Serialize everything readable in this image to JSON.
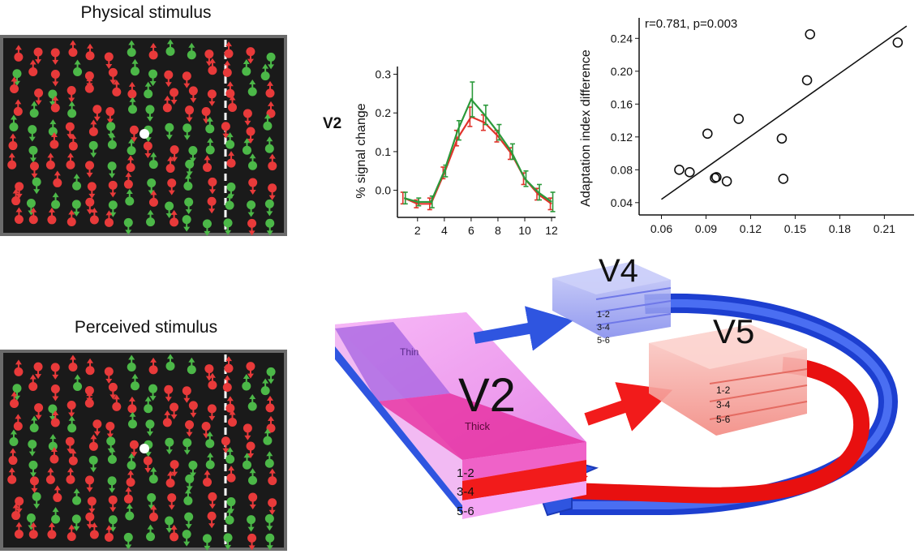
{
  "stimuli": {
    "physical_title": "Physical stimulus",
    "perceived_title": "Perceived stimulus",
    "colors": {
      "background": "#1a1a1a",
      "frame": "#6b6b6b",
      "red": "#e83a3a",
      "green": "#4cb848",
      "fixation": "#ffffff",
      "divider": "#ffffff"
    }
  },
  "v2_timecourse": {
    "area_label": "V2",
    "chart_data": {
      "type": "line",
      "ylabel": "% signal change",
      "xlabel": "",
      "x": [
        1,
        2,
        3,
        4,
        5,
        6,
        7,
        8,
        9,
        10,
        11,
        12
      ],
      "xticks": [
        "2",
        "4",
        "6",
        "8",
        "10",
        "12"
      ],
      "yticks": [
        "0.0",
        "0.1",
        "0.2",
        "0.3"
      ],
      "xlim": [
        0.5,
        12.3
      ],
      "ylim": [
        -0.07,
        0.32
      ],
      "series": [
        {
          "color": "#e0332b",
          "values": [
            -0.02,
            -0.035,
            -0.035,
            0.045,
            0.135,
            0.19,
            0.175,
            0.14,
            0.095,
            0.03,
            -0.01,
            -0.035
          ],
          "err": [
            0.015,
            0.01,
            0.015,
            0.015,
            0.02,
            0.025,
            0.02,
            0.015,
            0.015,
            0.015,
            0.015,
            0.015
          ]
        },
        {
          "color": "#2b9a3b",
          "values": [
            -0.02,
            -0.03,
            -0.03,
            0.05,
            0.155,
            0.235,
            0.195,
            0.15,
            0.1,
            0.03,
            -0.005,
            -0.03
          ],
          "err": [
            0.015,
            0.01,
            0.015,
            0.015,
            0.025,
            0.045,
            0.025,
            0.02,
            0.02,
            0.02,
            0.02,
            0.025
          ]
        }
      ]
    }
  },
  "scatter": {
    "annotation": "r=0.781, p=0.003",
    "chart_data": {
      "type": "scatter",
      "ylabel": "Adaptation index difference",
      "xlabel": "",
      "xticks": [
        "0.06",
        "0.09",
        "0.12",
        "0.15",
        "0.18",
        "0.21"
      ],
      "yticks": [
        "0.04",
        "0.08",
        "0.12",
        "0.16",
        "0.20",
        "0.24"
      ],
      "xlim": [
        0.045,
        0.23
      ],
      "ylim": [
        0.025,
        0.265
      ],
      "points": [
        [
          0.072,
          0.08
        ],
        [
          0.079,
          0.077
        ],
        [
          0.091,
          0.124
        ],
        [
          0.096,
          0.07
        ],
        [
          0.097,
          0.071
        ],
        [
          0.104,
          0.066
        ],
        [
          0.112,
          0.142
        ],
        [
          0.141,
          0.118
        ],
        [
          0.142,
          0.069
        ],
        [
          0.158,
          0.189
        ],
        [
          0.16,
          0.245
        ],
        [
          0.219,
          0.235
        ]
      ],
      "fit_line": {
        "x": [
          0.06,
          0.225
        ],
        "y": [
          0.044,
          0.255
        ]
      }
    }
  },
  "diagram": {
    "v2_label": "V2",
    "v4_label": "V4",
    "v5_label": "V5",
    "thin_label": "Thin",
    "thick_label": "Thick",
    "layers": [
      "1-2",
      "3-4",
      "5-6"
    ],
    "colors": {
      "magenta": "#e066e8",
      "blue": "#2f55e0",
      "red": "#f21b1b",
      "v4_fill": "#8f97f0",
      "v5_fill": "#f5a19a"
    }
  }
}
